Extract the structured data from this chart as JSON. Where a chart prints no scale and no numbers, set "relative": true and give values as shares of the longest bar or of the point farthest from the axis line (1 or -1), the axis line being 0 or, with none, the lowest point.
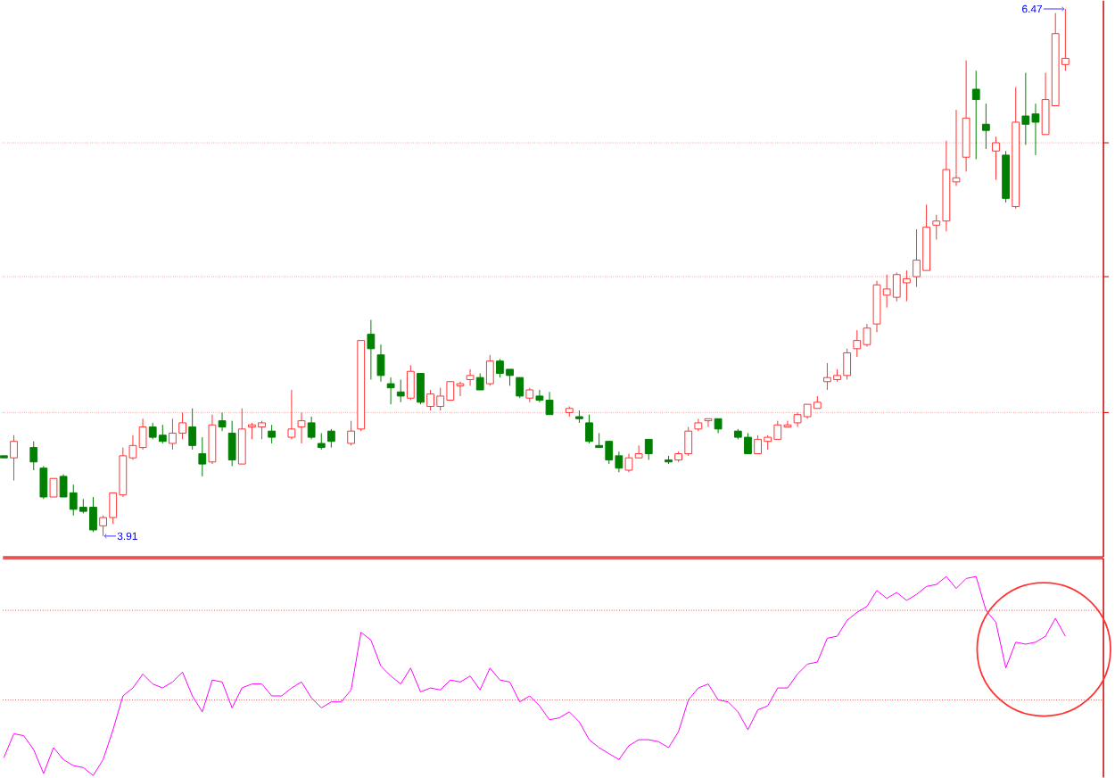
{
  "chart_data": [
    {
      "type": "candlestick",
      "categories": [
        null,
        null,
        null,
        null,
        null,
        null,
        null,
        null,
        null,
        null,
        null,
        null,
        null,
        null,
        null,
        null,
        null,
        null,
        null,
        null,
        null,
        null,
        null,
        null,
        null,
        null,
        null,
        null,
        null,
        null,
        null,
        null,
        null,
        null,
        null,
        null,
        null,
        null,
        null,
        null,
        null,
        null,
        null,
        null,
        null,
        null,
        null,
        null,
        null,
        null,
        null,
        null,
        null,
        null,
        null,
        null,
        null,
        null,
        null,
        null,
        null,
        null,
        null,
        null,
        null,
        null,
        null,
        null,
        null,
        null,
        null,
        null,
        null,
        null,
        null,
        null,
        null,
        null,
        null,
        null,
        null,
        null,
        null,
        null,
        null,
        null,
        null,
        null,
        null,
        null,
        null,
        null,
        null,
        null,
        null,
        null,
        null,
        null,
        null,
        null,
        null,
        null,
        null,
        null,
        null,
        null,
        null,
        null
      ],
      "ohlc": [
        [
          4.3,
          4.3,
          4.29,
          4.29
        ],
        [
          4.29,
          4.4,
          4.18,
          4.37
        ],
        null,
        [
          4.34,
          4.37,
          4.23,
          4.27
        ],
        [
          4.24,
          4.25,
          4.09,
          4.1
        ],
        [
          4.1,
          4.19,
          4.1,
          4.19
        ],
        [
          4.2,
          4.21,
          4.1,
          4.1
        ],
        [
          4.12,
          4.16,
          4.01,
          4.04
        ],
        [
          4.05,
          4.09,
          4.02,
          4.03
        ],
        [
          4.05,
          4.1,
          3.93,
          3.94
        ],
        [
          3.96,
          4.01,
          3.91,
          4.0
        ],
        [
          4.0,
          4.12,
          3.97,
          4.12
        ],
        [
          4.11,
          4.34,
          4.1,
          4.3
        ],
        [
          4.29,
          4.4,
          4.28,
          4.35
        ],
        [
          4.34,
          4.48,
          4.33,
          4.44
        ],
        [
          4.44,
          4.46,
          4.38,
          4.39
        ],
        [
          4.4,
          4.45,
          4.36,
          4.37
        ],
        [
          4.36,
          4.48,
          4.33,
          4.41
        ],
        [
          4.41,
          4.51,
          4.38,
          4.46
        ],
        [
          4.44,
          4.53,
          4.33,
          4.35
        ],
        [
          4.31,
          4.39,
          4.2,
          4.26
        ],
        [
          4.27,
          4.5,
          4.26,
          4.45
        ],
        [
          4.47,
          4.51,
          4.42,
          4.44
        ],
        [
          4.41,
          4.47,
          4.25,
          4.28
        ],
        [
          4.26,
          4.53,
          4.26,
          4.43
        ],
        [
          4.44,
          4.46,
          4.38,
          4.45
        ],
        [
          4.44,
          4.47,
          4.38,
          4.46
        ],
        [
          4.42,
          4.45,
          4.36,
          4.39
        ],
        null,
        [
          4.39,
          4.62,
          4.38,
          4.43
        ],
        [
          4.44,
          4.51,
          4.36,
          4.47
        ],
        [
          4.46,
          4.49,
          4.38,
          4.39
        ],
        [
          4.36,
          4.41,
          4.33,
          4.34
        ],
        [
          4.42,
          4.43,
          4.34,
          4.37
        ],
        null,
        [
          4.36,
          4.47,
          4.35,
          4.42
        ],
        [
          4.43,
          4.86,
          4.42,
          4.86
        ],
        [
          4.89,
          4.96,
          4.67,
          4.82
        ],
        [
          4.79,
          4.84,
          4.66,
          4.69
        ],
        [
          4.65,
          4.68,
          4.55,
          4.63
        ],
        [
          4.61,
          4.67,
          4.56,
          4.59
        ],
        [
          4.58,
          4.74,
          4.57,
          4.71
        ],
        [
          4.7,
          4.7,
          4.55,
          4.56
        ],
        [
          4.54,
          4.62,
          4.52,
          4.6
        ],
        [
          4.54,
          4.63,
          4.52,
          4.59
        ],
        [
          4.57,
          4.66,
          4.57,
          4.66
        ],
        [
          4.64,
          4.66,
          4.59,
          4.65
        ],
        [
          4.67,
          4.72,
          4.64,
          4.69
        ],
        [
          4.68,
          4.7,
          4.62,
          4.62
        ],
        [
          4.65,
          4.79,
          4.64,
          4.76
        ],
        [
          4.76,
          4.77,
          4.68,
          4.7
        ],
        [
          4.72,
          4.72,
          4.64,
          4.69
        ],
        [
          4.68,
          4.68,
          4.58,
          4.59
        ],
        [
          4.58,
          4.63,
          4.56,
          4.62
        ],
        [
          4.59,
          4.62,
          4.56,
          4.57
        ],
        [
          4.57,
          4.61,
          4.5,
          4.5
        ],
        null,
        [
          4.51,
          4.54,
          4.49,
          4.53
        ],
        [
          4.49,
          4.52,
          4.46,
          4.48
        ],
        [
          4.46,
          4.5,
          4.36,
          4.37
        ],
        [
          4.35,
          4.41,
          4.34,
          4.34
        ],
        [
          4.37,
          4.37,
          4.26,
          4.28
        ],
        [
          4.3,
          4.32,
          4.22,
          4.24
        ],
        [
          4.23,
          4.31,
          4.22,
          4.29
        ],
        [
          4.29,
          4.35,
          4.29,
          4.31
        ],
        [
          4.38,
          4.38,
          4.28,
          4.31
        ],
        null,
        [
          4.28,
          4.3,
          4.26,
          4.27
        ],
        [
          4.28,
          4.32,
          4.27,
          4.31
        ],
        [
          4.31,
          4.44,
          4.3,
          4.42
        ],
        [
          4.43,
          4.48,
          4.42,
          4.46
        ],
        [
          4.47,
          4.48,
          4.44,
          4.48
        ],
        [
          4.48,
          4.48,
          4.41,
          4.43
        ],
        null,
        [
          4.42,
          4.43,
          4.38,
          4.39
        ],
        [
          4.39,
          4.41,
          4.31,
          4.31
        ],
        [
          4.31,
          4.4,
          4.31,
          4.38
        ],
        [
          4.37,
          4.4,
          4.33,
          4.39
        ],
        [
          4.38,
          4.47,
          4.38,
          4.45
        ],
        [
          4.44,
          4.47,
          4.44,
          4.45
        ],
        [
          4.46,
          4.51,
          4.44,
          4.5
        ],
        [
          4.49,
          4.55,
          4.48,
          4.55
        ],
        [
          4.53,
          4.59,
          4.53,
          4.56
        ],
        [
          4.66,
          4.75,
          4.62,
          4.68
        ],
        [
          4.67,
          4.72,
          4.66,
          4.69
        ],
        [
          4.69,
          4.82,
          4.67,
          4.8
        ],
        [
          4.82,
          4.91,
          4.78,
          4.86
        ],
        [
          4.84,
          4.94,
          4.83,
          4.92
        ],
        [
          4.94,
          5.15,
          4.9,
          5.13
        ],
        [
          5.08,
          5.18,
          5.02,
          5.11
        ],
        [
          5.07,
          5.19,
          5.05,
          5.18
        ],
        [
          5.14,
          5.2,
          5.05,
          5.16
        ],
        [
          5.17,
          5.4,
          5.12,
          5.25
        ],
        [
          5.2,
          5.52,
          5.2,
          5.41
        ],
        [
          5.42,
          5.47,
          5.35,
          5.44
        ],
        [
          5.44,
          5.83,
          5.39,
          5.69
        ],
        [
          5.63,
          5.98,
          5.61,
          5.65
        ],
        [
          5.75,
          6.22,
          5.68,
          5.94
        ],
        [
          6.08,
          6.17,
          5.74,
          6.03
        ],
        [
          5.91,
          6.01,
          5.79,
          5.88
        ],
        [
          5.78,
          5.85,
          5.64,
          5.82
        ],
        [
          5.76,
          5.78,
          5.53,
          5.55
        ],
        [
          5.51,
          6.09,
          5.5,
          5.92
        ],
        [
          5.95,
          6.16,
          5.81,
          5.91
        ],
        [
          5.96,
          6.01,
          5.76,
          5.92
        ],
        [
          5.86,
          6.16,
          5.86,
          6.03
        ],
        [
          6.0,
          6.45,
          6.0,
          6.35
        ],
        [
          6.2,
          6.47,
          6.17,
          6.23
        ]
      ],
      "yticks": [
        {
          "value": 4.51,
          "label": null
        },
        {
          "value": 5.17,
          "label": null
        },
        {
          "value": 5.82,
          "label": null
        }
      ],
      "grid": "y",
      "annotations": [
        "6.47",
        "3.91"
      ]
    },
    {
      "type": "line",
      "relative": true,
      "categories": [
        null,
        null,
        null,
        null,
        null,
        null,
        null,
        null,
        null,
        null,
        null,
        null,
        null,
        null,
        null,
        null,
        null,
        null,
        null,
        null,
        null,
        null,
        null,
        null,
        null,
        null,
        null,
        null,
        null,
        null,
        null,
        null,
        null,
        null,
        null,
        null,
        null,
        null,
        null,
        null,
        null,
        null,
        null,
        null,
        null,
        null,
        null,
        null,
        null,
        null,
        null,
        null,
        null,
        null,
        null,
        null,
        null,
        null,
        null,
        null,
        null,
        null,
        null,
        null,
        null,
        null,
        null,
        null,
        null,
        null,
        null,
        null,
        null,
        null,
        null,
        null,
        null,
        null,
        null,
        null,
        null,
        null,
        null,
        null,
        null,
        null,
        null,
        null,
        null,
        null,
        null,
        null,
        null,
        null,
        null,
        null,
        null,
        null,
        null,
        null,
        null,
        null,
        null,
        null,
        null,
        null,
        null,
        null
      ],
      "series": [
        {
          "color": "#ff00ff",
          "values": [
            0.09,
            0.21,
            0.2,
            0.13,
            0.01,
            0.14,
            0.08,
            0.05,
            0.04,
            0,
            0.08,
            0.23,
            0.4,
            0.44,
            0.51,
            0.46,
            0.44,
            0.47,
            0.52,
            0.4,
            0.32,
            0.48,
            0.47,
            0.34,
            0.44,
            0.46,
            0.46,
            0.4,
            0.4,
            0.44,
            0.47,
            0.39,
            0.34,
            0.37,
            0.37,
            0.43,
            0.72,
            0.68,
            0.55,
            0.5,
            0.46,
            0.54,
            0.42,
            0.44,
            0.43,
            0.48,
            0.47,
            0.5,
            0.43,
            0.54,
            0.48,
            0.47,
            0.37,
            0.4,
            0.35,
            0.28,
            0.29,
            0.32,
            0.27,
            0.18,
            0.14,
            0.11,
            0.08,
            0.15,
            0.18,
            0.18,
            0.17,
            0.14,
            0.22,
            0.38,
            0.44,
            0.46,
            0.38,
            0.37,
            0.32,
            0.23,
            0.33,
            0.35,
            0.44,
            0.44,
            0.51,
            0.56,
            0.57,
            0.69,
            0.7,
            0.78,
            0.82,
            0.85,
            0.93,
            0.89,
            0.92,
            0.88,
            0.91,
            0.95,
            0.96,
            1.0,
            0.94,
            0.99,
            1.0,
            0.83,
            0.77,
            0.54,
            0.67,
            0.66,
            0.67,
            0.7,
            0.79,
            0.7
          ]
        }
      ],
      "ref_lines": [
        {
          "axis": "y",
          "value": 0.83,
          "color": "#cc0000",
          "line_style": "dotted"
        },
        {
          "axis": "y",
          "value": 0.38,
          "color": "#cc0000",
          "line_style": "dotted"
        }
      ]
    }
  ]
}
